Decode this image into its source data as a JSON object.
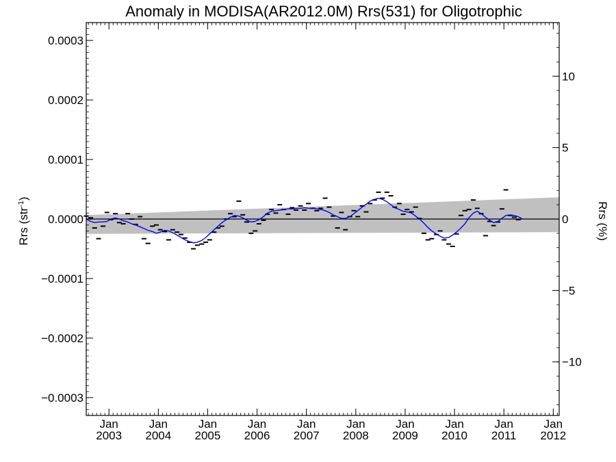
{
  "chart_data": {
    "type": "line",
    "title": "Anomaly in MODISA(AR2012.0M) Rrs(531) for Oligotrophic",
    "ylabel_main": "Rrs (str",
    "ylabel_sup": "-1",
    "ylabel_close": ")",
    "y2label": "Rrs (%)",
    "xlim": [
      2002.54,
      2012.12
    ],
    "ylim": [
      -0.00033,
      0.00033
    ],
    "y2lim": [
      -13.75,
      13.75
    ],
    "y_ticks": [
      {
        "value": 0.0003,
        "label": "0.0003"
      },
      {
        "value": 0.0002,
        "label": "0.0002"
      },
      {
        "value": 0.0001,
        "label": "0.0001"
      },
      {
        "value": 0.0,
        "label": "0.0000"
      },
      {
        "value": -0.0001,
        "label": "−0.0001"
      },
      {
        "value": -0.0002,
        "label": "−0.0002"
      },
      {
        "value": -0.0003,
        "label": "−0.0003"
      }
    ],
    "y2_ticks": [
      {
        "value": 10,
        "label": "10"
      },
      {
        "value": 5,
        "label": "5"
      },
      {
        "value": 0,
        "label": "0"
      },
      {
        "value": -5,
        "label": "−5"
      },
      {
        "value": -10,
        "label": "−10"
      }
    ],
    "x_ticks": [
      {
        "value": 2003,
        "month": "Jan",
        "year": "2003"
      },
      {
        "value": 2004,
        "month": "Jan",
        "year": "2004"
      },
      {
        "value": 2005,
        "month": "Jan",
        "year": "2005"
      },
      {
        "value": 2006,
        "month": "Jan",
        "year": "2006"
      },
      {
        "value": 2007,
        "month": "Jan",
        "year": "2007"
      },
      {
        "value": 2008,
        "month": "Jan",
        "year": "2008"
      },
      {
        "value": 2009,
        "month": "Jan",
        "year": "2009"
      },
      {
        "value": 2010,
        "month": "Jan",
        "year": "2010"
      },
      {
        "value": 2011,
        "month": "Jan",
        "year": "2011"
      },
      {
        "value": 2012,
        "month": "Jan",
        "year": "2012"
      }
    ],
    "band": {
      "color": "#c0c0c0",
      "upper": [
        [
          2002.54,
          6.5e-06
        ],
        [
          2012.12,
          3.65e-05
        ]
      ],
      "lower": [
        [
          2002.54,
          -2.5e-05
        ],
        [
          2012.12,
          -2.2e-05
        ]
      ]
    },
    "zero_line_color": "#000000",
    "monthly_points": {
      "color": "#000000",
      "points": [
        [
          2002.54,
          5e-06
        ],
        [
          2002.63,
          2e-06
        ],
        [
          2002.71,
          -1.5e-05
        ],
        [
          2002.79,
          -3.3e-05
        ],
        [
          2002.88,
          -1.2e-05
        ],
        [
          2002.96,
          1.1e-05
        ],
        [
          2003.04,
          -1e-06
        ],
        [
          2003.13,
          9e-06
        ],
        [
          2003.21,
          -6e-06
        ],
        [
          2003.29,
          -8e-06
        ],
        [
          2003.38,
          9e-06
        ],
        [
          2003.46,
          0.0
        ],
        [
          2003.54,
          -9e-06
        ],
        [
          2003.63,
          4e-06
        ],
        [
          2003.71,
          -3.3e-05
        ],
        [
          2003.79,
          -4.1e-05
        ],
        [
          2003.88,
          -1.2e-05
        ],
        [
          2003.96,
          -1e-05
        ],
        [
          2004.04,
          -1.8e-05
        ],
        [
          2004.13,
          -2.1e-05
        ],
        [
          2004.21,
          -3.5e-05
        ],
        [
          2004.29,
          -1.8e-05
        ],
        [
          2004.38,
          -2.2e-05
        ],
        [
          2004.46,
          -2.6e-05
        ],
        [
          2004.54,
          -3.2e-05
        ],
        [
          2004.63,
          -3.9e-05
        ],
        [
          2004.71,
          -5e-05
        ],
        [
          2004.79,
          -4.4e-05
        ],
        [
          2004.88,
          -4.2e-05
        ],
        [
          2004.96,
          -3.9e-05
        ],
        [
          2005.04,
          -3.5e-05
        ],
        [
          2005.13,
          -2.2e-05
        ],
        [
          2005.21,
          -1.5e-05
        ],
        [
          2005.29,
          -1.2e-05
        ],
        [
          2005.38,
          0.0
        ],
        [
          2005.46,
          9e-06
        ],
        [
          2005.54,
          4e-06
        ],
        [
          2005.63,
          3e-05
        ],
        [
          2005.71,
          7e-06
        ],
        [
          2005.79,
          -5e-06
        ],
        [
          2005.88,
          -2.4e-05
        ],
        [
          2005.96,
          -2e-05
        ],
        [
          2006.04,
          -8e-06
        ],
        [
          2006.13,
          -2e-06
        ],
        [
          2006.21,
          8e-06
        ],
        [
          2006.29,
          1.6e-05
        ],
        [
          2006.38,
          1e-05
        ],
        [
          2006.46,
          2.4e-05
        ],
        [
          2006.54,
          1.6e-05
        ],
        [
          2006.63,
          8e-06
        ],
        [
          2006.71,
          1.9e-05
        ],
        [
          2006.79,
          1.5e-05
        ],
        [
          2006.88,
          2.2e-05
        ],
        [
          2006.96,
          1.5e-05
        ],
        [
          2007.04,
          2.6e-05
        ],
        [
          2007.13,
          1.8e-05
        ],
        [
          2007.21,
          1.4e-05
        ],
        [
          2007.29,
          1.8e-05
        ],
        [
          2007.38,
          3.5e-05
        ],
        [
          2007.46,
          2e-05
        ],
        [
          2007.54,
          5e-06
        ],
        [
          2007.63,
          -1.5e-05
        ],
        [
          2007.71,
          1.1e-05
        ],
        [
          2007.79,
          -1.8e-05
        ],
        [
          2007.88,
          4e-06
        ],
        [
          2007.96,
          1.4e-05
        ],
        [
          2008.04,
          4e-06
        ],
        [
          2008.13,
          2.2e-05
        ],
        [
          2008.21,
          1.2e-05
        ],
        [
          2008.29,
          2.6e-05
        ],
        [
          2008.38,
          3.2e-05
        ],
        [
          2008.46,
          4.5e-05
        ],
        [
          2008.54,
          3.5e-05
        ],
        [
          2008.63,
          4.5e-05
        ],
        [
          2008.71,
          3.9e-05
        ],
        [
          2008.79,
          2e-05
        ],
        [
          2008.88,
          2.6e-05
        ],
        [
          2008.96,
          8e-06
        ],
        [
          2009.04,
          1.6e-05
        ],
        [
          2009.13,
          1.2e-05
        ],
        [
          2009.21,
          2e-05
        ],
        [
          2009.29,
          1e-06
        ],
        [
          2009.38,
          -2.4e-05
        ],
        [
          2009.46,
          -3.5e-05
        ],
        [
          2009.54,
          -3.3e-05
        ],
        [
          2009.63,
          -2.6e-05
        ],
        [
          2009.71,
          -2e-05
        ],
        [
          2009.79,
          -3.5e-05
        ],
        [
          2009.88,
          -4.2e-05
        ],
        [
          2009.96,
          -4.6e-05
        ],
        [
          2010.04,
          -2.5e-05
        ],
        [
          2010.13,
          6e-06
        ],
        [
          2010.21,
          1.4e-05
        ],
        [
          2010.29,
          1.6e-05
        ],
        [
          2010.38,
          3.2e-05
        ],
        [
          2010.46,
          1.8e-05
        ],
        [
          2010.54,
          9e-06
        ],
        [
          2010.63,
          -2.8e-05
        ],
        [
          2010.71,
          -4e-06
        ],
        [
          2010.79,
          -1.1e-05
        ],
        [
          2010.88,
          -5e-06
        ],
        [
          2010.96,
          1.7e-05
        ],
        [
          2011.04,
          4.9e-05
        ],
        [
          2011.13,
          6e-06
        ],
        [
          2011.21,
          3e-06
        ],
        [
          2011.29,
          -1e-06
        ]
      ]
    },
    "smoothed_series": {
      "color": "#0000ff",
      "points": [
        [
          2002.54,
          0.0
        ],
        [
          2002.63,
          -4e-06
        ],
        [
          2002.71,
          -6e-06
        ],
        [
          2002.79,
          -5e-06
        ],
        [
          2002.88,
          -5e-06
        ],
        [
          2002.96,
          -4e-06
        ],
        [
          2003.04,
          0.0
        ],
        [
          2003.13,
          2e-06
        ],
        [
          2003.21,
          0.0
        ],
        [
          2003.29,
          -3e-06
        ],
        [
          2003.38,
          -5e-06
        ],
        [
          2003.46,
          -8e-06
        ],
        [
          2003.54,
          -1e-05
        ],
        [
          2003.63,
          -1.3e-05
        ],
        [
          2003.71,
          -1.6e-05
        ],
        [
          2003.79,
          -1.9e-05
        ],
        [
          2003.88,
          -2.1e-05
        ],
        [
          2003.96,
          -2.4e-05
        ],
        [
          2004.04,
          -2.2e-05
        ],
        [
          2004.13,
          -1.9e-05
        ],
        [
          2004.21,
          -2e-05
        ],
        [
          2004.29,
          -2.3e-05
        ],
        [
          2004.38,
          -2.7e-05
        ],
        [
          2004.46,
          -3.1e-05
        ],
        [
          2004.54,
          -3.5e-05
        ],
        [
          2004.63,
          -3.8e-05
        ],
        [
          2004.71,
          -4e-05
        ],
        [
          2004.79,
          -3.9e-05
        ],
        [
          2004.88,
          -3.6e-05
        ],
        [
          2004.96,
          -3.1e-05
        ],
        [
          2005.04,
          -2.5e-05
        ],
        [
          2005.13,
          -1.8e-05
        ],
        [
          2005.21,
          -1.2e-05
        ],
        [
          2005.29,
          -6e-06
        ],
        [
          2005.38,
          -1e-06
        ],
        [
          2005.46,
          3e-06
        ],
        [
          2005.54,
          6e-06
        ],
        [
          2005.63,
          5e-06
        ],
        [
          2005.71,
          2e-06
        ],
        [
          2005.79,
          -2e-06
        ],
        [
          2005.88,
          -5e-06
        ],
        [
          2005.96,
          -4e-06
        ],
        [
          2006.04,
          -1e-06
        ],
        [
          2006.13,
          4e-06
        ],
        [
          2006.21,
          1e-05
        ],
        [
          2006.29,
          1.3e-05
        ],
        [
          2006.38,
          1.4e-05
        ],
        [
          2006.46,
          1.5e-05
        ],
        [
          2006.54,
          1.6e-05
        ],
        [
          2006.63,
          1.7e-05
        ],
        [
          2006.71,
          1.7e-05
        ],
        [
          2006.79,
          1.8e-05
        ],
        [
          2006.88,
          1.8e-05
        ],
        [
          2006.96,
          1.9e-05
        ],
        [
          2007.04,
          1.8e-05
        ],
        [
          2007.13,
          1.8e-05
        ],
        [
          2007.21,
          1.7e-05
        ],
        [
          2007.29,
          1.6e-05
        ],
        [
          2007.38,
          1.4e-05
        ],
        [
          2007.46,
          1.1e-05
        ],
        [
          2007.54,
          7e-06
        ],
        [
          2007.63,
          4e-06
        ],
        [
          2007.71,
          1e-06
        ],
        [
          2007.79,
          1e-06
        ],
        [
          2007.88,
          4e-06
        ],
        [
          2007.96,
          9e-06
        ],
        [
          2008.04,
          1.4e-05
        ],
        [
          2008.13,
          2e-05
        ],
        [
          2008.21,
          2.5e-05
        ],
        [
          2008.29,
          3e-05
        ],
        [
          2008.38,
          3.3e-05
        ],
        [
          2008.46,
          3.5e-05
        ],
        [
          2008.54,
          3.3e-05
        ],
        [
          2008.63,
          2.9e-05
        ],
        [
          2008.71,
          2.4e-05
        ],
        [
          2008.79,
          1.9e-05
        ],
        [
          2008.88,
          1.6e-05
        ],
        [
          2008.96,
          1.3e-05
        ],
        [
          2009.04,
          1.2e-05
        ],
        [
          2009.13,
          1e-05
        ],
        [
          2009.21,
          5e-06
        ],
        [
          2009.29,
          0.0
        ],
        [
          2009.38,
          -7e-06
        ],
        [
          2009.46,
          -1.4e-05
        ],
        [
          2009.54,
          -2e-05
        ],
        [
          2009.63,
          -2.5e-05
        ],
        [
          2009.71,
          -2.9e-05
        ],
        [
          2009.79,
          -3.2e-05
        ],
        [
          2009.88,
          -3.1e-05
        ],
        [
          2009.96,
          -2.7e-05
        ],
        [
          2010.04,
          -2.2e-05
        ],
        [
          2010.13,
          -1.5e-05
        ],
        [
          2010.21,
          -8e-06
        ],
        [
          2010.29,
          2e-06
        ],
        [
          2010.38,
          1e-05
        ],
        [
          2010.46,
          1.3e-05
        ],
        [
          2010.54,
          9e-06
        ],
        [
          2010.63,
          3e-06
        ],
        [
          2010.71,
          -2e-06
        ],
        [
          2010.79,
          -6e-06
        ],
        [
          2010.88,
          -4e-06
        ],
        [
          2010.96,
          1e-06
        ],
        [
          2011.04,
          6e-06
        ],
        [
          2011.13,
          7e-06
        ],
        [
          2011.21,
          6e-06
        ],
        [
          2011.29,
          4e-06
        ],
        [
          2011.38,
          0.0
        ]
      ]
    }
  }
}
